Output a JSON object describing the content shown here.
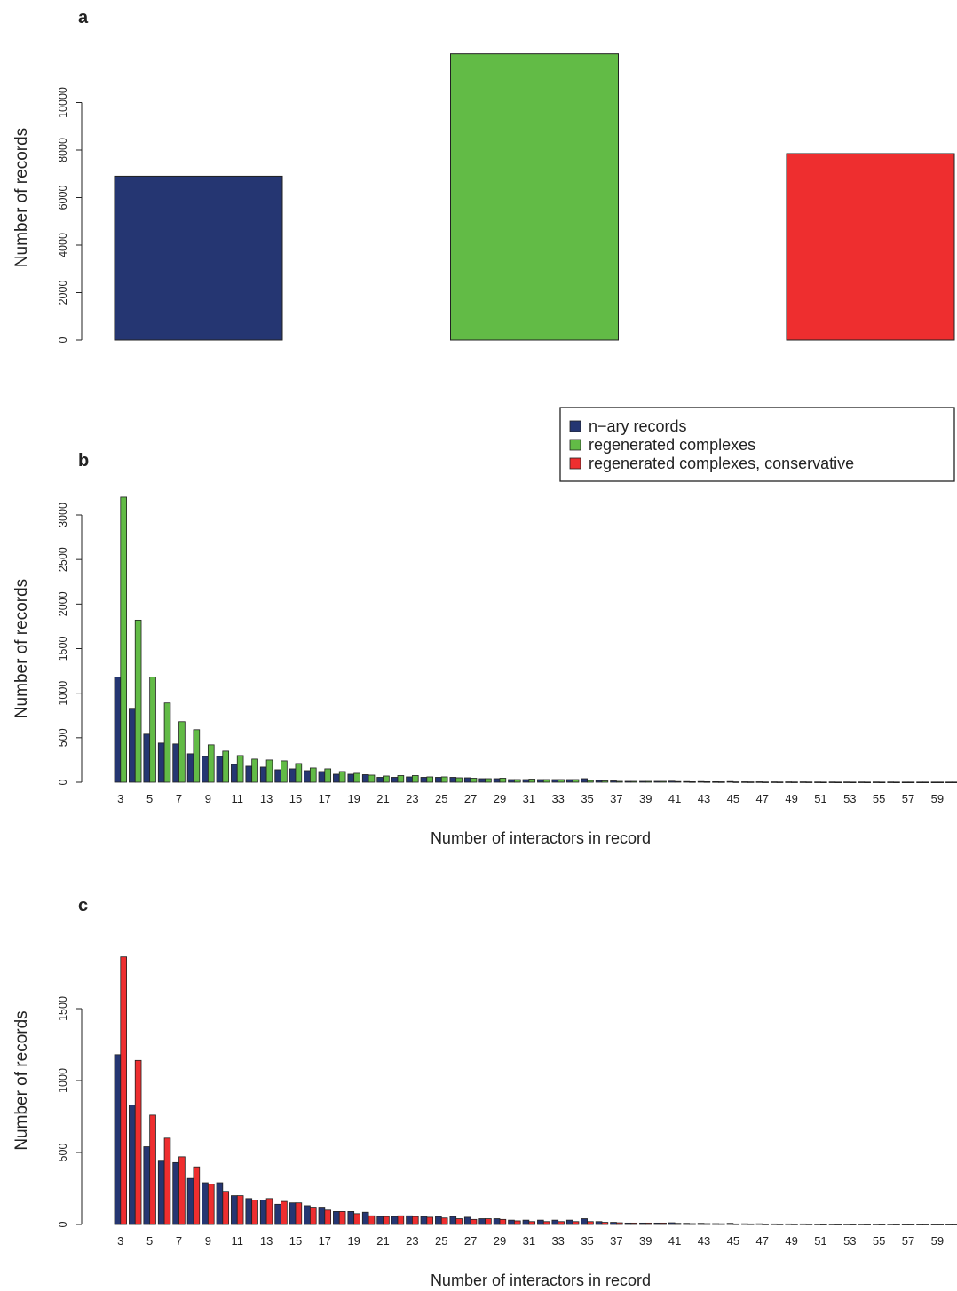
{
  "colors": {
    "nary": "#253672",
    "regenerated": "#62bb46",
    "conservative": "#ee2e2f",
    "axis": "#222222",
    "background": "#ffffff"
  },
  "legend": {
    "position": "top-right",
    "items": [
      {
        "label": "n−ary records",
        "color": "#253672"
      },
      {
        "label": "regenerated complexes",
        "color": "#62bb46"
      },
      {
        "label": "regenerated complexes, conservative",
        "color": "#ee2e2f"
      }
    ]
  },
  "chart_data": [
    {
      "panel": "a",
      "type": "bar",
      "title": "",
      "xlabel": "",
      "ylabel": "Number of records",
      "ylim": [
        0,
        12000
      ],
      "y_ticks": [
        0,
        2000,
        4000,
        6000,
        8000,
        10000
      ],
      "categories": [
        "n−ary records",
        "regenerated complexes",
        "regenerated complexes, conservative"
      ],
      "values": [
        6900,
        12050,
        7850
      ],
      "colors": [
        "#253672",
        "#62bb46",
        "#ee2e2f"
      ]
    },
    {
      "panel": "b",
      "type": "bar",
      "title": "",
      "xlabel": "Number of interactors in record",
      "ylabel": "Number of records",
      "ylim": [
        0,
        3000
      ],
      "y_ticks": [
        0,
        500,
        1000,
        1500,
        2000,
        2500,
        3000
      ],
      "x": [
        3,
        4,
        5,
        6,
        7,
        8,
        9,
        10,
        11,
        12,
        13,
        14,
        15,
        16,
        17,
        18,
        19,
        20,
        21,
        22,
        23,
        24,
        25,
        26,
        27,
        28,
        29,
        30,
        31,
        32,
        33,
        34,
        35,
        36,
        37,
        38,
        39,
        40,
        41,
        42,
        43,
        44,
        45,
        46,
        47,
        48,
        49,
        50,
        51,
        52,
        53,
        54,
        55,
        56,
        57,
        58,
        59,
        60
      ],
      "x_tick_labels": [
        "3",
        "5",
        "7",
        "9",
        "11",
        "13",
        "15",
        "17",
        "19",
        "21",
        "23",
        "25",
        "27",
        "29",
        "31",
        "33",
        "35",
        "37",
        "39",
        "41",
        "43",
        "45",
        "47",
        "49",
        "51",
        "53",
        "55",
        "57",
        "59"
      ],
      "series": [
        {
          "name": "n−ary records",
          "values": [
            1180,
            830,
            540,
            440,
            430,
            320,
            290,
            290,
            200,
            180,
            170,
            140,
            150,
            130,
            120,
            90,
            90,
            85,
            55,
            55,
            60,
            55,
            55,
            55,
            50,
            40,
            40,
            30,
            30,
            30,
            30,
            30,
            40,
            20,
            15,
            10,
            10,
            10,
            12,
            8,
            8,
            6,
            8,
            5,
            5,
            4,
            4,
            4,
            3,
            3,
            3,
            3,
            3,
            3,
            2,
            2,
            2,
            2
          ]
        },
        {
          "name": "regenerated complexes",
          "values": [
            3200,
            1820,
            1180,
            890,
            680,
            590,
            420,
            350,
            300,
            260,
            250,
            240,
            210,
            160,
            150,
            120,
            100,
            80,
            70,
            75,
            75,
            60,
            60,
            50,
            45,
            40,
            45,
            30,
            35,
            30,
            30,
            30,
            20,
            15,
            10,
            10,
            10,
            10,
            8,
            6,
            6,
            5,
            4,
            4,
            3,
            3,
            3,
            3,
            2,
            2,
            2,
            2,
            2,
            2,
            2,
            2,
            2,
            2
          ]
        }
      ]
    },
    {
      "panel": "c",
      "type": "bar",
      "title": "",
      "xlabel": "Number of interactors in record",
      "ylabel": "Number of records",
      "ylim": [
        0,
        2000
      ],
      "y_ticks": [
        0,
        500,
        1000,
        1500
      ],
      "x": [
        3,
        4,
        5,
        6,
        7,
        8,
        9,
        10,
        11,
        12,
        13,
        14,
        15,
        16,
        17,
        18,
        19,
        20,
        21,
        22,
        23,
        24,
        25,
        26,
        27,
        28,
        29,
        30,
        31,
        32,
        33,
        34,
        35,
        36,
        37,
        38,
        39,
        40,
        41,
        42,
        43,
        44,
        45,
        46,
        47,
        48,
        49,
        50,
        51,
        52,
        53,
        54,
        55,
        56,
        57,
        58,
        59,
        60
      ],
      "x_tick_labels": [
        "3",
        "5",
        "7",
        "9",
        "11",
        "13",
        "15",
        "17",
        "19",
        "21",
        "23",
        "25",
        "27",
        "29",
        "31",
        "33",
        "35",
        "37",
        "39",
        "41",
        "43",
        "45",
        "47",
        "49",
        "51",
        "53",
        "55",
        "57",
        "59"
      ],
      "series": [
        {
          "name": "n−ary records",
          "values": [
            1180,
            830,
            540,
            440,
            430,
            320,
            290,
            290,
            200,
            180,
            170,
            140,
            150,
            130,
            120,
            90,
            90,
            85,
            55,
            55,
            60,
            55,
            55,
            55,
            50,
            40,
            40,
            30,
            30,
            30,
            30,
            30,
            40,
            20,
            15,
            10,
            10,
            10,
            12,
            8,
            8,
            6,
            8,
            5,
            5,
            4,
            4,
            4,
            3,
            3,
            3,
            3,
            3,
            3,
            2,
            2,
            2,
            2
          ]
        },
        {
          "name": "regenerated complexes, conservative",
          "values": [
            1860,
            1140,
            760,
            600,
            470,
            400,
            280,
            230,
            200,
            170,
            180,
            160,
            150,
            120,
            100,
            90,
            75,
            60,
            55,
            60,
            55,
            50,
            45,
            40,
            35,
            40,
            35,
            25,
            20,
            20,
            20,
            20,
            20,
            15,
            12,
            10,
            10,
            10,
            8,
            6,
            6,
            5,
            4,
            4,
            3,
            3,
            3,
            3,
            2,
            2,
            2,
            2,
            2,
            2,
            2,
            2,
            2,
            2
          ]
        }
      ]
    }
  ]
}
